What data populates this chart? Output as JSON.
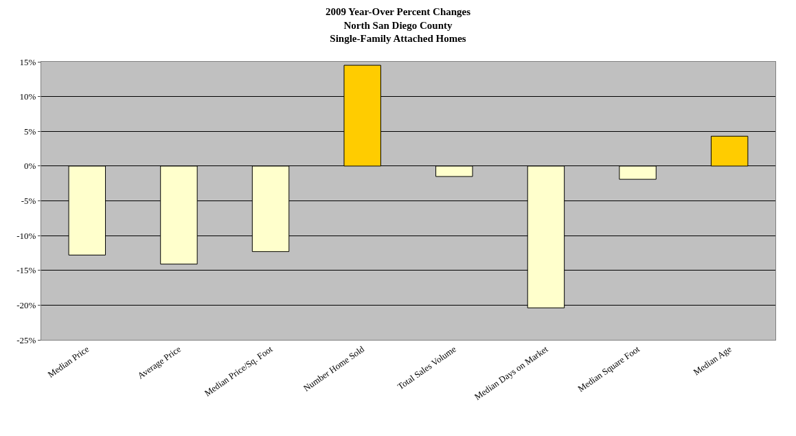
{
  "chart_data": {
    "type": "bar",
    "title": "2009 Year-Over Percent Changes\nNorth San Diego County\nSingle-Family Attached Homes",
    "categories": [
      "Median Price",
      "Average Price",
      "Median Price/Sq. Foot",
      "Number Home Sold",
      "Total Sales Volume",
      "Median Days on Market",
      "Median Square Foot",
      "Median Age"
    ],
    "values": [
      -12.8,
      -14.1,
      -12.3,
      14.5,
      -1.5,
      -20.4,
      -1.9,
      4.3
    ],
    "colors": [
      "#ffffcc",
      "#ffffcc",
      "#ffffcc",
      "#ffcc00",
      "#ffffcc",
      "#ffffcc",
      "#ffffcc",
      "#ffcc00"
    ],
    "ylim": [
      -25,
      15
    ],
    "yticks": [
      {
        "value": -25,
        "label": "-25%"
      },
      {
        "value": -20,
        "label": "-20%"
      },
      {
        "value": -15,
        "label": "-15%"
      },
      {
        "value": -10,
        "label": "-10%"
      },
      {
        "value": -5,
        "label": "-5%"
      },
      {
        "value": 0,
        "label": "0%"
      },
      {
        "value": 5,
        "label": "5%"
      },
      {
        "value": 10,
        "label": "10%"
      },
      {
        "value": 15,
        "label": "15%"
      }
    ],
    "grid": "y",
    "legend": false
  }
}
